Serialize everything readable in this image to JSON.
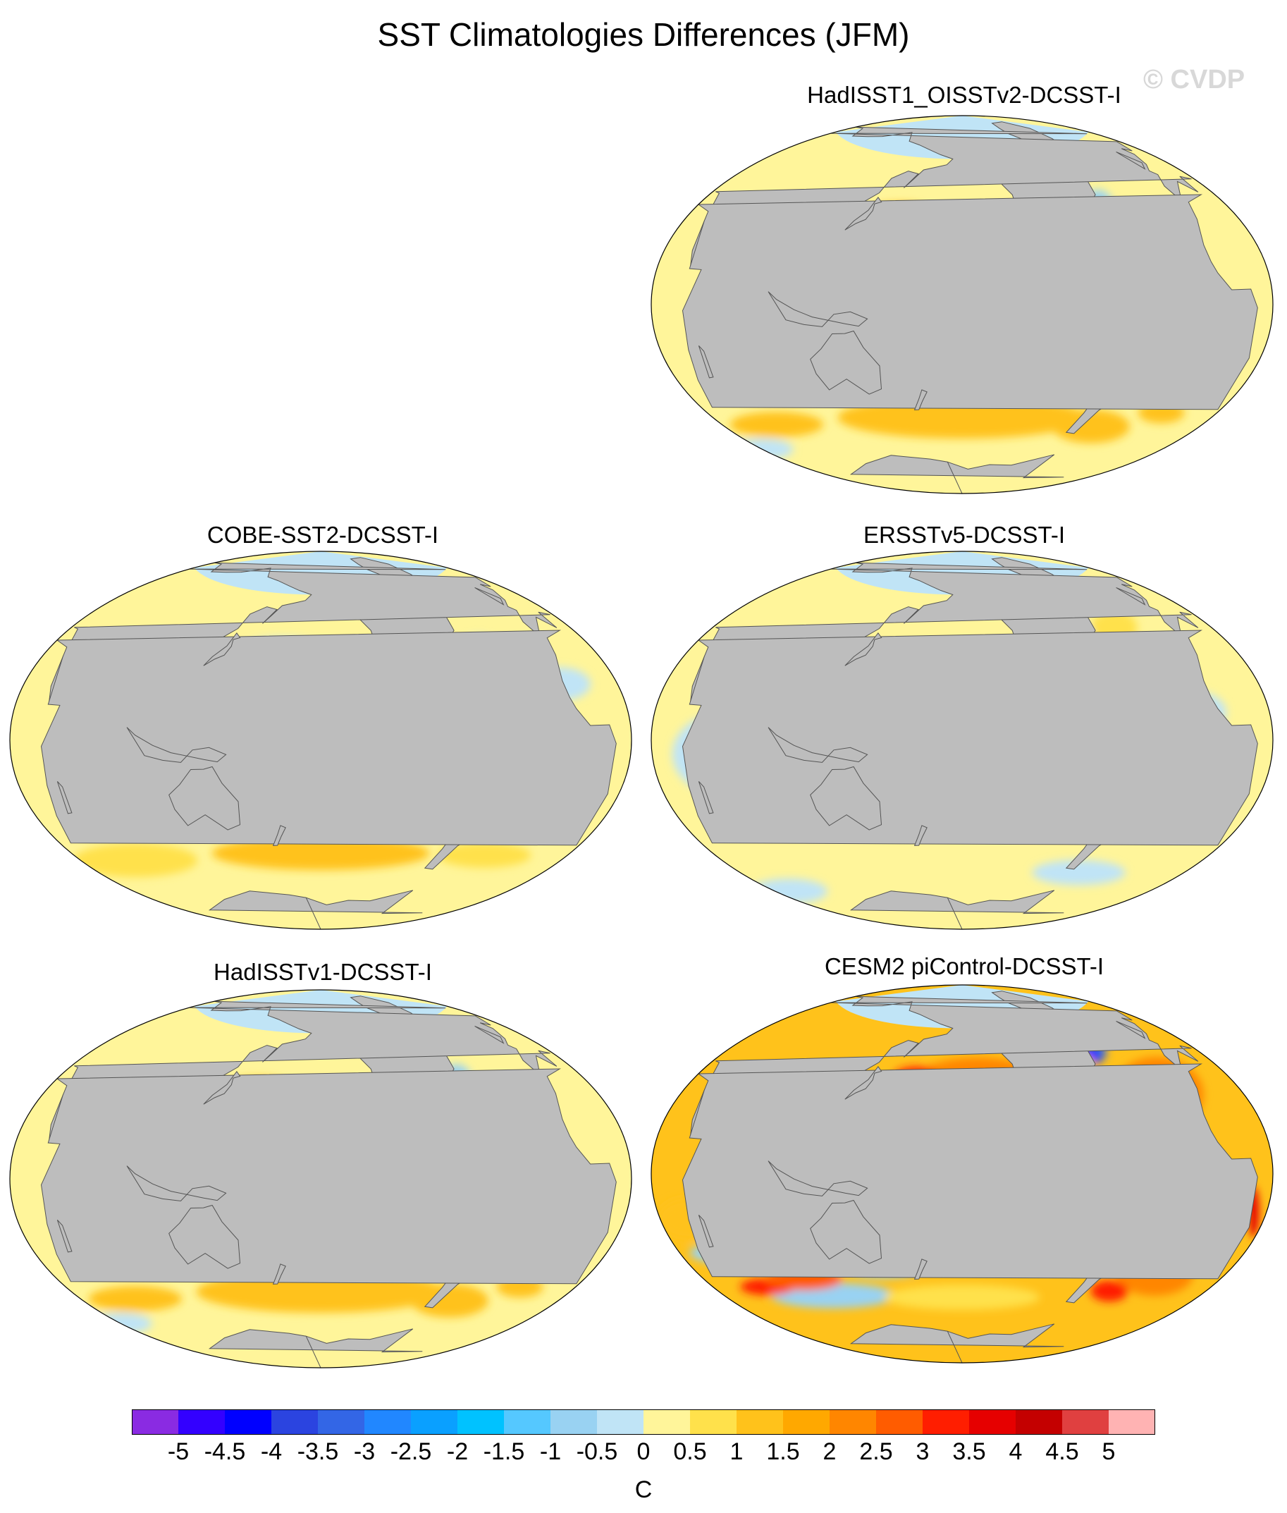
{
  "title": "SST Climatologies Differences (JFM)",
  "watermark": "© CVDP",
  "colors": {
    "land": "#bdbdbd",
    "ocean_default": "#fff59a",
    "palette": [
      "#8a2be2",
      "#3300ff",
      "#0000ff",
      "#2b44e0",
      "#3366e6",
      "#2187ff",
      "#0aa0ff",
      "#00c2ff",
      "#55c8ff",
      "#99d2f2",
      "#c0e4f6",
      "#fff59a",
      "#ffe14b",
      "#ffc21b",
      "#ffa800",
      "#ff8600",
      "#ff5c00",
      "#ff1e00",
      "#e60000",
      "#c40000",
      "#e04040",
      "#ffb3b3"
    ]
  },
  "panels": [
    {
      "id": "hadisst1-oisstv2",
      "title": "HadISST1_OISSTv2-DCSST-I",
      "style": "warm-mild"
    },
    {
      "id": "cobe-sst2",
      "title": "COBE-SST2-DCSST-I",
      "style": "mild"
    },
    {
      "id": "ersstv5",
      "title": "ERSSTv5-DCSST-I",
      "style": "cool-mild"
    },
    {
      "id": "hadisstv1",
      "title": "HadISSTv1-DCSST-I",
      "style": "warm-mild"
    },
    {
      "id": "cesm2-picontrol",
      "title": "CESM2 piControl-DCSST-I",
      "style": "strong"
    }
  ],
  "colorbar": {
    "labels": [
      "-5",
      "-4.5",
      "-4",
      "-3.5",
      "-3",
      "-2.5",
      "-2",
      "-1.5",
      "-1",
      "-0.5",
      "0",
      "0.5",
      "1",
      "1.5",
      "2",
      "2.5",
      "3",
      "3.5",
      "4",
      "4.5",
      "5"
    ],
    "units": "C"
  }
}
